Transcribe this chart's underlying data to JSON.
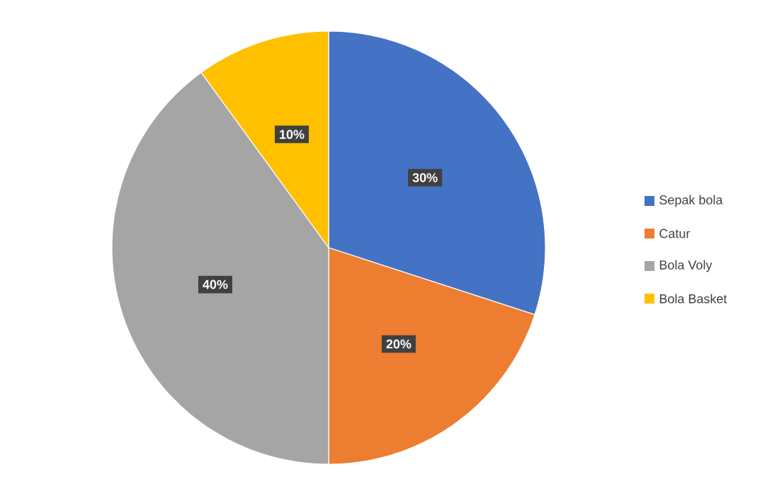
{
  "chart_data": {
    "type": "pie",
    "categories": [
      "Sepak bola",
      "Catur",
      "Bola Voly",
      "Bola Basket"
    ],
    "values": [
      30,
      20,
      40,
      10
    ],
    "colors": [
      "#4472c4",
      "#ed7d31",
      "#a5a5a5",
      "#ffc000"
    ],
    "value_labels": [
      "30%",
      "20%",
      "40%",
      "10%"
    ],
    "legend": "right"
  }
}
